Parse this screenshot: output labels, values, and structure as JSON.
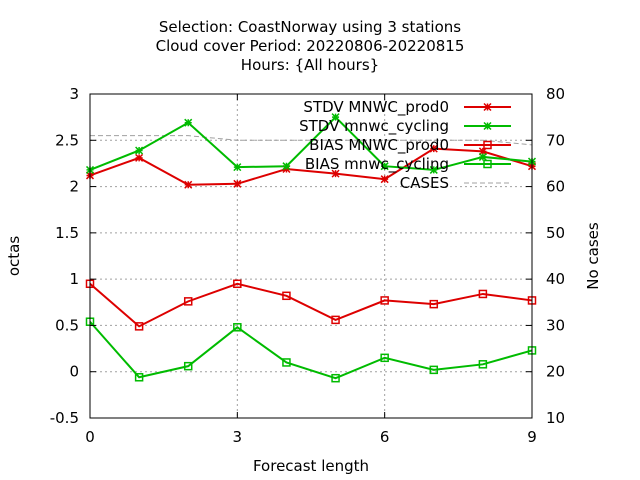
{
  "title_lines": [
    "Selection: CoastNorway using     3 stations",
    "Cloud cover   Period: 20220806-20220815",
    "Hours: {All hours}"
  ],
  "chart_data": {
    "type": "line",
    "xlabel": "Forecast length",
    "ylabel": "octas",
    "y2label": "No cases",
    "xlim": [
      0,
      9
    ],
    "ylim": [
      -0.5,
      3
    ],
    "y2lim": [
      10,
      80
    ],
    "xticks": [
      "0",
      "3",
      "6",
      "9"
    ],
    "yticks": [
      "-0.5",
      "0",
      "0.5",
      "1",
      "1.5",
      "2",
      "2.5",
      "3"
    ],
    "y2ticks": [
      "10",
      "20",
      "30",
      "40",
      "50",
      "60",
      "70",
      "80"
    ],
    "grid": true,
    "legend_position": "top-right",
    "x": [
      0,
      1,
      2,
      3,
      4,
      5,
      6,
      7,
      8,
      9
    ],
    "series": [
      {
        "name": "STDV MNWC_prod0",
        "color": "#dd0000",
        "marker": "asterisk",
        "axis": "y",
        "values": [
          2.12,
          2.31,
          2.02,
          2.03,
          2.19,
          2.14,
          2.08,
          2.41,
          2.38,
          2.22
        ]
      },
      {
        "name": "STDV mnwc_cycling",
        "color": "#00bb00",
        "marker": "asterisk",
        "axis": "y",
        "values": [
          2.18,
          2.39,
          2.69,
          2.21,
          2.22,
          2.75,
          2.22,
          2.18,
          2.32,
          2.27
        ]
      },
      {
        "name": "BIAS MNWC_prod0",
        "color": "#dd0000",
        "marker": "square",
        "axis": "y",
        "values": [
          0.95,
          0.49,
          0.76,
          0.95,
          0.82,
          0.56,
          0.77,
          0.73,
          0.84,
          0.77
        ]
      },
      {
        "name": "BIAS mnwc_cycling",
        "color": "#00bb00",
        "marker": "square",
        "axis": "y",
        "values": [
          0.54,
          -0.06,
          0.06,
          0.48,
          0.1,
          -0.07,
          0.15,
          0.02,
          0.08,
          0.23
        ]
      },
      {
        "name": "CASES",
        "color": "#a0a0a0",
        "marker": "none",
        "dashed": true,
        "axis": "y2",
        "values": [
          71,
          71,
          71,
          70,
          70,
          70,
          70,
          70,
          70,
          69
        ]
      }
    ]
  }
}
